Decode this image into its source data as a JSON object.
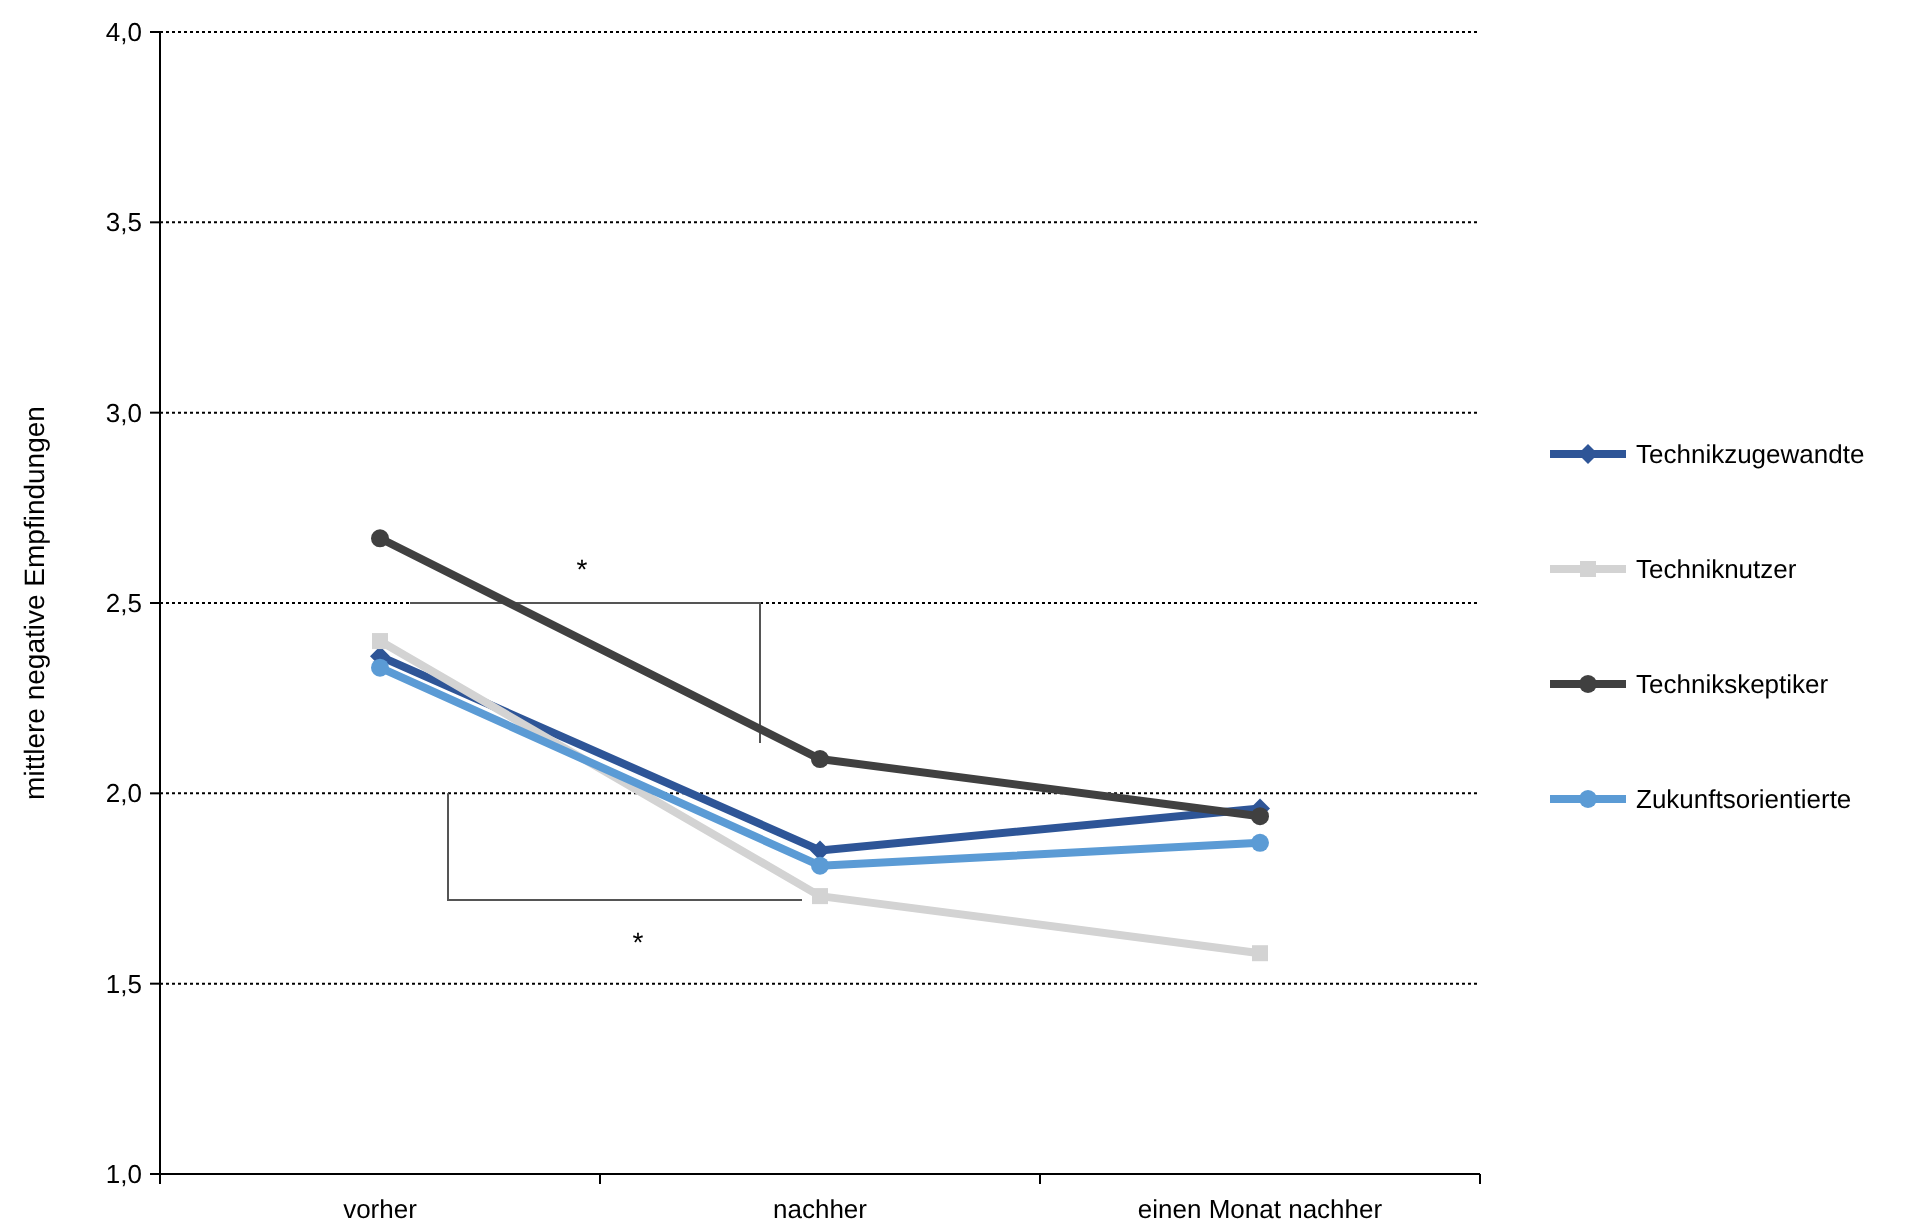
{
  "chart_data": {
    "type": "line",
    "ylabel": "mittlere negative Empfindungen",
    "categories": [
      "vorher",
      "nachher",
      "einen Monat nachher"
    ],
    "ylim": [
      1,
      4
    ],
    "yticks": [
      {
        "value": 1,
        "label": "1,0"
      },
      {
        "value": 1.5,
        "label": "1,5"
      },
      {
        "value": 2,
        "label": "2,0"
      },
      {
        "value": 2.5,
        "label": "2,5"
      },
      {
        "value": 3,
        "label": "3,0"
      },
      {
        "value": 3.5,
        "label": "3,5"
      },
      {
        "value": 4,
        "label": "4,0"
      }
    ],
    "grid": "y",
    "legend": "right",
    "annotations": [
      "*",
      "*"
    ],
    "series": [
      {
        "name": "Technikzugewandte",
        "color": "#2e5597",
        "marker": "diamond",
        "values": [
          2.36,
          1.85,
          1.96
        ]
      },
      {
        "name": "Techniknutzer",
        "color": "#d3d3d3",
        "marker": "square",
        "values": [
          2.4,
          1.73,
          1.58
        ]
      },
      {
        "name": "Technikskeptiker",
        "color": "#404040",
        "marker": "circle",
        "values": [
          2.67,
          2.09,
          1.94
        ]
      },
      {
        "name": "Zukunftsorientierte",
        "color": "#5b9bd5",
        "marker": "circle",
        "values": [
          2.33,
          1.81,
          1.87
        ]
      }
    ]
  }
}
